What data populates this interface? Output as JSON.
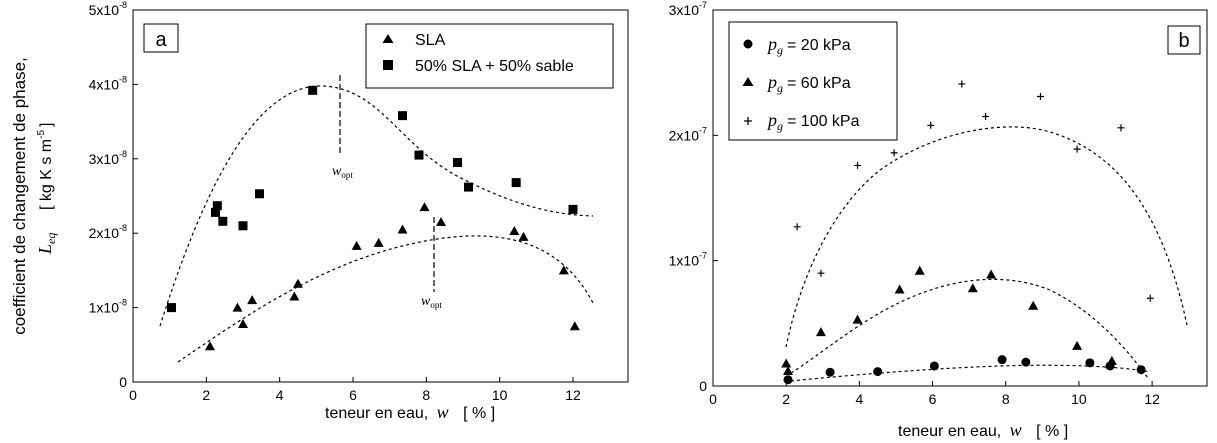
{
  "chart_data": [
    {
      "type": "scatter",
      "panel_label": "a",
      "xlabel": "teneur en eau,",
      "xlabel_symbol": "w",
      "xlabel_unit": "[ % ]",
      "ylabel_line1": "coefficient de changement de phase,",
      "ylabel_symbol": "L",
      "ylabel_subscript": "eq",
      "ylabel_unit": "[ kg K s m",
      "ylabel_unit_exp": "-5",
      "ylabel_unit_close": "]",
      "xlim": [
        0,
        13.5
      ],
      "ylim": [
        0,
        5e-08
      ],
      "x_ticks": [
        0,
        2,
        4,
        6,
        8,
        10,
        12
      ],
      "y_ticks": [
        {
          "value": 0,
          "label": "0",
          "exp": ""
        },
        {
          "value": 1e-08,
          "label": "1x10",
          "exp": "-8"
        },
        {
          "value": 2e-08,
          "label": "2x10",
          "exp": "-8"
        },
        {
          "value": 3e-08,
          "label": "3x10",
          "exp": "-8"
        },
        {
          "value": 4e-08,
          "label": "4x10",
          "exp": "-8"
        },
        {
          "value": 5e-08,
          "label": "5x10",
          "exp": "-8"
        }
      ],
      "legend_position": "top-right",
      "series": [
        {
          "name": "SLA",
          "marker": "triangle",
          "x": [
            2.1,
            2.85,
            3.0,
            3.25,
            4.4,
            4.5,
            6.1,
            6.7,
            7.35,
            7.95,
            8.4,
            10.4,
            10.65,
            11.75,
            12.05
          ],
          "y": [
            4.8e-09,
            1e-08,
            7.8e-09,
            1.1e-08,
            1.15e-08,
            1.32e-08,
            1.83e-08,
            1.87e-08,
            2.05e-08,
            2.35e-08,
            2.15e-08,
            2.03e-08,
            1.95e-08,
            1.5e-08,
            7.5e-09
          ]
        },
        {
          "name": "50% SLA + 50% sable",
          "marker": "square",
          "x": [
            1.05,
            2.25,
            2.3,
            2.45,
            3.0,
            3.45,
            4.9,
            7.35,
            7.8,
            8.85,
            9.15,
            10.45,
            12.0
          ],
          "y": [
            1e-08,
            2.28e-08,
            2.37e-08,
            2.16e-08,
            2.1e-08,
            2.53e-08,
            3.92e-08,
            3.58e-08,
            3.05e-08,
            2.95e-08,
            2.62e-08,
            2.68e-08,
            2.32e-08
          ]
        }
      ],
      "annotations": [
        {
          "text": "w",
          "subscript": "opt",
          "x": 5.7,
          "y": 3.15e-08
        },
        {
          "text": "w",
          "subscript": "opt",
          "x": 8.1,
          "y": 1.05e-08
        }
      ]
    },
    {
      "type": "scatter",
      "panel_label": "b",
      "xlabel": "teneur en eau,",
      "xlabel_symbol": "w",
      "xlabel_unit": "[ % ]",
      "xlim": [
        0,
        13.5
      ],
      "ylim": [
        0,
        3e-07
      ],
      "x_ticks": [
        0,
        2,
        4,
        6,
        8,
        10,
        12
      ],
      "y_ticks": [
        {
          "value": 0,
          "label": "0",
          "exp": ""
        },
        {
          "value": 1e-07,
          "label": "1x10",
          "exp": "-7"
        },
        {
          "value": 2e-07,
          "label": "2x10",
          "exp": "-7"
        },
        {
          "value": 3e-07,
          "label": "3x10",
          "exp": "-7"
        }
      ],
      "legend_position": "top-left",
      "series": [
        {
          "name_symbol": "p",
          "name_subscript": "g",
          "name_value": "= 20 kPa",
          "marker": "circle",
          "x": [
            2.05,
            3.2,
            4.5,
            6.05,
            7.9,
            8.55,
            10.3,
            10.85,
            11.7
          ],
          "y": [
            5e-09,
            1.1e-08,
            1.15e-08,
            1.6e-08,
            2.1e-08,
            1.9e-08,
            1.85e-08,
            1.6e-08,
            1.3e-08
          ]
        },
        {
          "name_symbol": "p",
          "name_subscript": "g",
          "name_value": "= 60 kPa",
          "marker": "triangle",
          "x": [
            2.0,
            2.05,
            2.95,
            3.95,
            5.1,
            5.65,
            7.1,
            7.6,
            8.75,
            9.95,
            10.85,
            10.9
          ],
          "y": [
            1.8e-08,
            1.2e-08,
            4.3e-08,
            5.3e-08,
            7.7e-08,
            9.2e-08,
            7.8e-08,
            8.9e-08,
            6.4e-08,
            3.2e-08,
            1.75e-08,
            2e-08
          ]
        },
        {
          "name_symbol": "p",
          "name_subscript": "g",
          "name_value": "= 100 kPa",
          "marker": "plus",
          "x": [
            2.3,
            2.95,
            3.95,
            4.95,
            5.95,
            6.8,
            7.45,
            8.95,
            9.95,
            11.15,
            11.95
          ],
          "y": [
            1.27e-07,
            9e-08,
            1.76e-07,
            1.86e-07,
            2.08e-07,
            2.41e-07,
            2.15e-07,
            2.31e-07,
            1.89e-07,
            2.06e-07,
            7e-08
          ]
        }
      ]
    }
  ]
}
